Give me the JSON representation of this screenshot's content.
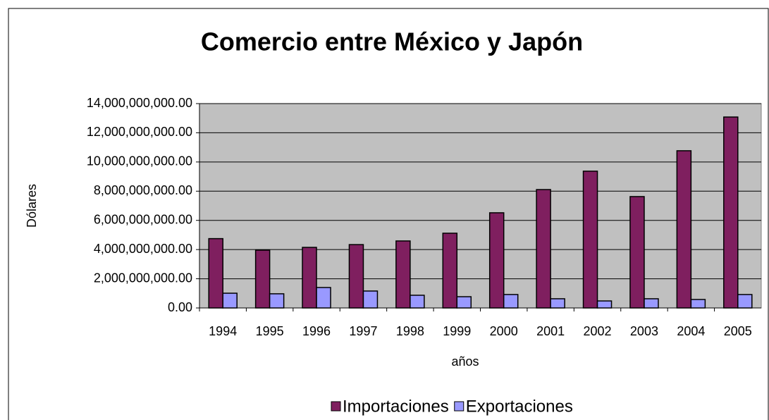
{
  "chart_data": {
    "type": "bar",
    "title": "Comercio entre México y Japón",
    "x_label": "años",
    "y_label": "Dólares",
    "categories": [
      "1994",
      "1995",
      "1996",
      "1997",
      "1998",
      "1999",
      "2000",
      "2001",
      "2002",
      "2003",
      "2004",
      "2005"
    ],
    "series": [
      {
        "name": "Importaciones",
        "color": "#7f1f5f",
        "values": [
          4750000000,
          3960000000,
          4150000000,
          4340000000,
          4590000000,
          5120000000,
          6520000000,
          8110000000,
          9370000000,
          7630000000,
          10770000000,
          13080000000
        ]
      },
      {
        "name": "Exportaciones",
        "color": "#9999ff",
        "values": [
          1010000000,
          970000000,
          1400000000,
          1160000000,
          870000000,
          770000000,
          920000000,
          630000000,
          480000000,
          630000000,
          580000000,
          920000000
        ]
      }
    ],
    "ylim": [
      0,
      14000000000
    ],
    "yticks": [
      {
        "value": 0,
        "label": "0.00"
      },
      {
        "value": 2000000000,
        "label": "2,000,000,000.00"
      },
      {
        "value": 4000000000,
        "label": "4,000,000,000.00"
      },
      {
        "value": 6000000000,
        "label": "6,000,000,000.00"
      },
      {
        "value": 8000000000,
        "label": "8,000,000,000.00"
      },
      {
        "value": 10000000000,
        "label": "10,000,000,000.00"
      },
      {
        "value": 12000000000,
        "label": "12,000,000,000.00"
      },
      {
        "value": 14000000000,
        "label": "14,000,000,000.00"
      }
    ],
    "grid": true,
    "legend": "bottom"
  }
}
